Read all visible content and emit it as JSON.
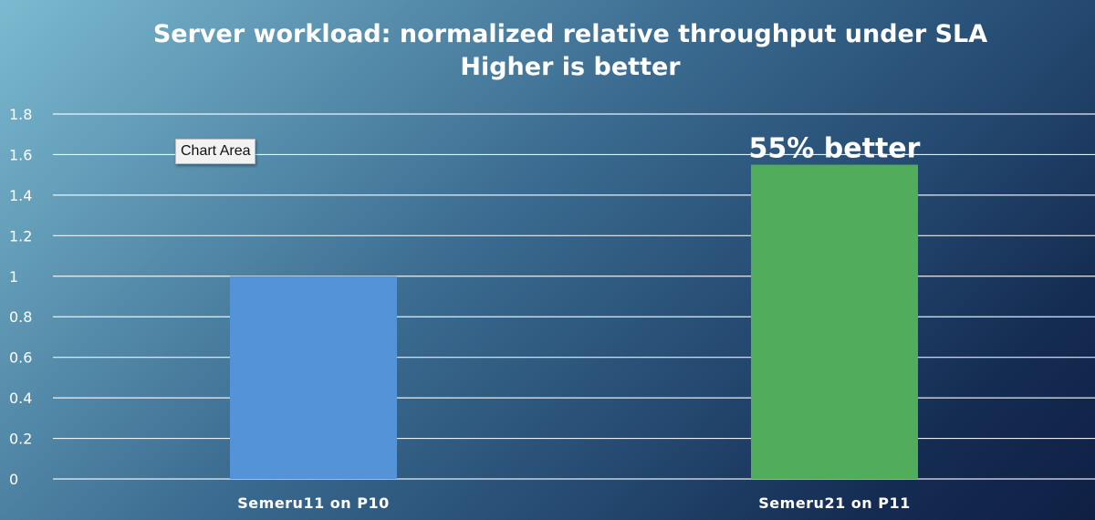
{
  "tooltip": "Chart Area",
  "colors": {
    "bar_1": "#5593d8",
    "bar_2": "#51ad5b",
    "text": "#ffffff",
    "gridline": "#ffffff"
  },
  "chart_data": {
    "type": "bar",
    "title": "Server workload: normalized relative throughput under SLA",
    "subtitle": "Higher is better",
    "categories": [
      "Semeru11 on P10",
      "Semeru21 on P11"
    ],
    "values": [
      1.0,
      1.55
    ],
    "ylim": [
      0,
      1.8
    ],
    "yticks": [
      "0",
      "0.2",
      "0.4",
      "0.6",
      "0.8",
      "1",
      "1.2",
      "1.4",
      "1.6",
      "1.8"
    ],
    "xlabel": "",
    "ylabel": "",
    "grid": true,
    "annotations": [
      {
        "category": "Semeru21 on P11",
        "text": "55% better"
      }
    ]
  }
}
